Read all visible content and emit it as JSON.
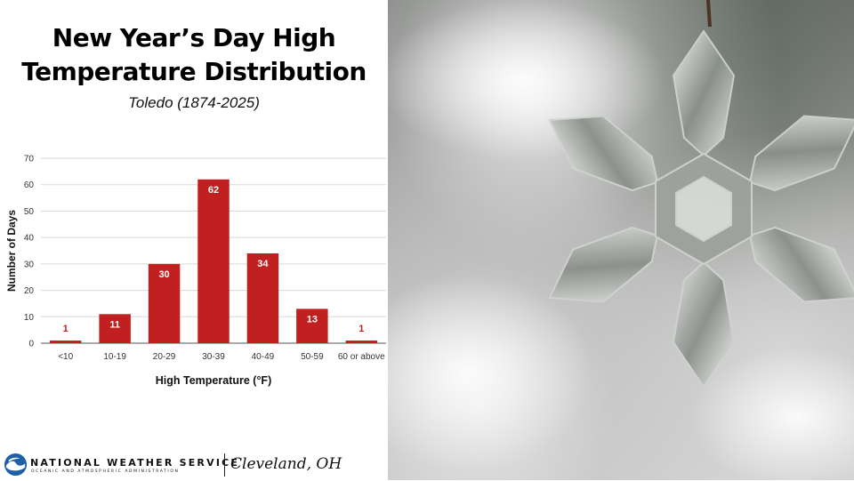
{
  "header": {
    "title_line1": "New Year’s Day High",
    "title_line2": "Temperature Distribution",
    "subtitle": "Toledo (1874-2025)"
  },
  "chart_data": {
    "type": "bar",
    "categories": [
      "<10",
      "10-19",
      "20-29",
      "30-39",
      "40-49",
      "50-59",
      "60 or above"
    ],
    "values": [
      1,
      11,
      30,
      62,
      34,
      13,
      1
    ],
    "data_labels": [
      "1",
      "11",
      "30",
      "62",
      "34",
      "13",
      "1"
    ],
    "xlabel": "High Temperature (°F)",
    "ylabel": "Number of Days",
    "ylim": [
      0,
      70
    ],
    "yticks": [
      0,
      10,
      20,
      30,
      40,
      50,
      60,
      70
    ],
    "grid": true,
    "legend": "none",
    "bar_color": "#c0201f",
    "label_color": "#ffffff",
    "small_label_color": "#c0201f"
  },
  "footer": {
    "agency": "NATIONAL WEATHER SERVICE",
    "agency_sub": "OCEANIC AND ATMOSPHERIC ADMINISTRATION",
    "office": "Cleveland, OH",
    "logo_icon": "noaa-logo-icon"
  },
  "photo": {
    "icon": "snowflake-ornament-icon"
  }
}
